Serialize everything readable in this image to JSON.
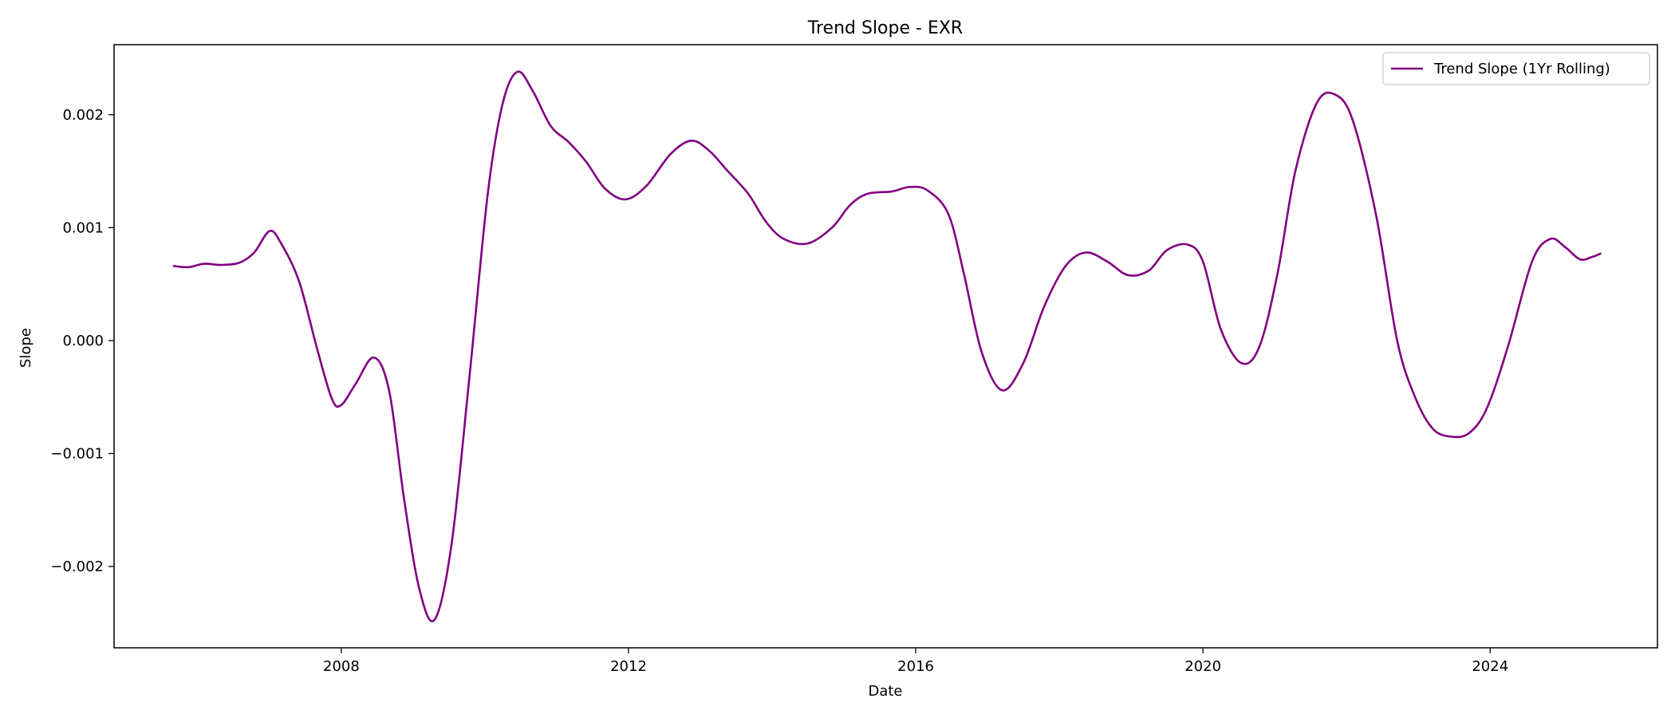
{
  "chart_data": {
    "type": "line",
    "title": "Trend Slope - EXR",
    "xlabel": "Date",
    "ylabel": "Slope",
    "grid": false,
    "legend_position": "top-right",
    "xlim": [
      "2004-11-01",
      "2026-05-01"
    ],
    "ylim": [
      -0.00272,
      0.00262
    ],
    "x_ticks": [
      {
        "value": "2008-01-01",
        "label": "2008"
      },
      {
        "value": "2012-01-01",
        "label": "2012"
      },
      {
        "value": "2016-01-01",
        "label": "2016"
      },
      {
        "value": "2020-01-01",
        "label": "2020"
      },
      {
        "value": "2024-01-01",
        "label": "2024"
      }
    ],
    "y_ticks": [
      {
        "value": 0.002,
        "label": "0.002"
      },
      {
        "value": 0.001,
        "label": "0.001"
      },
      {
        "value": 0.0,
        "label": "0.000"
      },
      {
        "value": -0.001,
        "label": "−0.001"
      },
      {
        "value": -0.002,
        "label": "−0.002"
      }
    ],
    "series": [
      {
        "name": "Trend Slope (1Yr Rolling)",
        "color": "#800080",
        "points": [
          {
            "x": "2005-09-01",
            "y": 0.00066
          },
          {
            "x": "2005-11-15",
            "y": 0.00065
          },
          {
            "x": "2006-02-01",
            "y": 0.00068
          },
          {
            "x": "2006-05-01",
            "y": 0.00067
          },
          {
            "x": "2006-08-01",
            "y": 0.00069
          },
          {
            "x": "2006-10-15",
            "y": 0.00078
          },
          {
            "x": "2007-01-01",
            "y": 0.00097
          },
          {
            "x": "2007-03-01",
            "y": 0.00086
          },
          {
            "x": "2007-06-01",
            "y": 0.00052
          },
          {
            "x": "2007-09-01",
            "y": -8e-05
          },
          {
            "x": "2007-11-15",
            "y": -0.00052
          },
          {
            "x": "2008-01-01",
            "y": -0.00057
          },
          {
            "x": "2008-03-15",
            "y": -0.00038
          },
          {
            "x": "2008-06-15",
            "y": -0.00015
          },
          {
            "x": "2008-09-01",
            "y": -0.00045
          },
          {
            "x": "2008-11-15",
            "y": -0.0014
          },
          {
            "x": "2009-02-01",
            "y": -0.0022
          },
          {
            "x": "2009-04-20",
            "y": -0.00247
          },
          {
            "x": "2009-07-15",
            "y": -0.0018
          },
          {
            "x": "2009-10-15",
            "y": -0.0003
          },
          {
            "x": "2010-01-15",
            "y": 0.0013
          },
          {
            "x": "2010-04-01",
            "y": 0.0021
          },
          {
            "x": "2010-06-15",
            "y": 0.00238
          },
          {
            "x": "2010-09-01",
            "y": 0.00221
          },
          {
            "x": "2010-12-01",
            "y": 0.0019
          },
          {
            "x": "2011-03-01",
            "y": 0.00176
          },
          {
            "x": "2011-06-01",
            "y": 0.00158
          },
          {
            "x": "2011-09-01",
            "y": 0.00135
          },
          {
            "x": "2011-12-15",
            "y": 0.00125
          },
          {
            "x": "2012-04-01",
            "y": 0.00137
          },
          {
            "x": "2012-08-01",
            "y": 0.00165
          },
          {
            "x": "2012-11-15",
            "y": 0.00177
          },
          {
            "x": "2013-02-15",
            "y": 0.00168
          },
          {
            "x": "2013-05-15",
            "y": 0.00151
          },
          {
            "x": "2013-09-01",
            "y": 0.0013
          },
          {
            "x": "2013-12-01",
            "y": 0.00105
          },
          {
            "x": "2014-03-01",
            "y": 0.0009
          },
          {
            "x": "2014-07-01",
            "y": 0.00086
          },
          {
            "x": "2014-11-01",
            "y": 0.001
          },
          {
            "x": "2015-02-01",
            "y": 0.0012
          },
          {
            "x": "2015-05-01",
            "y": 0.0013
          },
          {
            "x": "2015-09-01",
            "y": 0.00132
          },
          {
            "x": "2015-12-01",
            "y": 0.00136
          },
          {
            "x": "2016-03-01",
            "y": 0.00133
          },
          {
            "x": "2016-06-15",
            "y": 0.00112
          },
          {
            "x": "2016-09-01",
            "y": 0.0006
          },
          {
            "x": "2016-12-01",
            "y": -0.0001
          },
          {
            "x": "2017-03-15",
            "y": -0.00044
          },
          {
            "x": "2017-07-01",
            "y": -0.0002
          },
          {
            "x": "2017-10-15",
            "y": 0.0003
          },
          {
            "x": "2018-02-01",
            "y": 0.00066
          },
          {
            "x": "2018-05-15",
            "y": 0.00078
          },
          {
            "x": "2018-09-01",
            "y": 0.0007
          },
          {
            "x": "2018-12-15",
            "y": 0.00058
          },
          {
            "x": "2019-04-01",
            "y": 0.00062
          },
          {
            "x": "2019-07-01",
            "y": 0.0008
          },
          {
            "x": "2019-10-15",
            "y": 0.00085
          },
          {
            "x": "2020-01-01",
            "y": 0.0007
          },
          {
            "x": "2020-04-01",
            "y": 0.0001
          },
          {
            "x": "2020-07-15",
            "y": -0.0002
          },
          {
            "x": "2020-10-15",
            "y": -5e-05
          },
          {
            "x": "2021-01-15",
            "y": 0.0006
          },
          {
            "x": "2021-04-15",
            "y": 0.0015
          },
          {
            "x": "2021-08-01",
            "y": 0.0021
          },
          {
            "x": "2021-11-01",
            "y": 0.00218
          },
          {
            "x": "2022-02-01",
            "y": 0.00195
          },
          {
            "x": "2022-06-01",
            "y": 0.0011
          },
          {
            "x": "2022-09-15",
            "y": 0.0
          },
          {
            "x": "2022-12-15",
            "y": -0.0005
          },
          {
            "x": "2023-03-15",
            "y": -0.00078
          },
          {
            "x": "2023-06-15",
            "y": -0.00085
          },
          {
            "x": "2023-09-15",
            "y": -0.00082
          },
          {
            "x": "2023-12-15",
            "y": -0.0006
          },
          {
            "x": "2024-04-01",
            "y": -5e-05
          },
          {
            "x": "2024-08-01",
            "y": 0.0007
          },
          {
            "x": "2024-11-01",
            "y": 0.0009
          },
          {
            "x": "2025-01-15",
            "y": 0.00083
          },
          {
            "x": "2025-04-01",
            "y": 0.00072
          },
          {
            "x": "2025-06-01",
            "y": 0.00074
          },
          {
            "x": "2025-07-15",
            "y": 0.00077
          }
        ]
      }
    ]
  }
}
